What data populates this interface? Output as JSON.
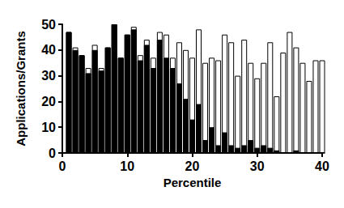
{
  "chart_data": {
    "type": "bar",
    "x_label": "Percentile",
    "y_label": "Applications/Grants",
    "x": [
      1,
      2,
      3,
      4,
      5,
      6,
      7,
      8,
      9,
      10,
      11,
      12,
      13,
      14,
      15,
      16,
      17,
      18,
      19,
      20,
      21,
      22,
      23,
      24,
      25,
      26,
      27,
      28,
      29,
      30,
      31,
      32,
      33,
      34,
      35,
      36,
      37,
      38,
      39,
      40
    ],
    "series": [
      {
        "color": "#ffffff",
        "values": [
          47,
          41,
          38,
          33,
          42,
          33,
          41,
          50,
          37,
          46,
          49,
          38,
          44,
          37,
          47,
          46,
          37,
          43,
          40,
          37,
          48,
          35,
          37,
          36,
          46,
          43,
          30,
          44,
          35,
          29,
          35,
          43,
          22,
          39,
          47,
          41,
          35,
          28,
          36,
          36
        ]
      },
      {
        "color": "#000000",
        "values": [
          47,
          40,
          38,
          31,
          40,
          32,
          41,
          50,
          37,
          46,
          48,
          36,
          42,
          33,
          44,
          37,
          33,
          27,
          21,
          13,
          19,
          5,
          10,
          3,
          8,
          3,
          2,
          3,
          5,
          2,
          3,
          2,
          1,
          0,
          0,
          1,
          0,
          0,
          0,
          0
        ]
      }
    ],
    "xlim": [
      0,
      40
    ],
    "xticks": [
      0,
      10,
      20,
      30,
      40
    ],
    "ylim": [
      0,
      50
    ],
    "yticks": [
      0,
      10,
      20,
      30,
      40,
      50
    ],
    "grid": false
  }
}
